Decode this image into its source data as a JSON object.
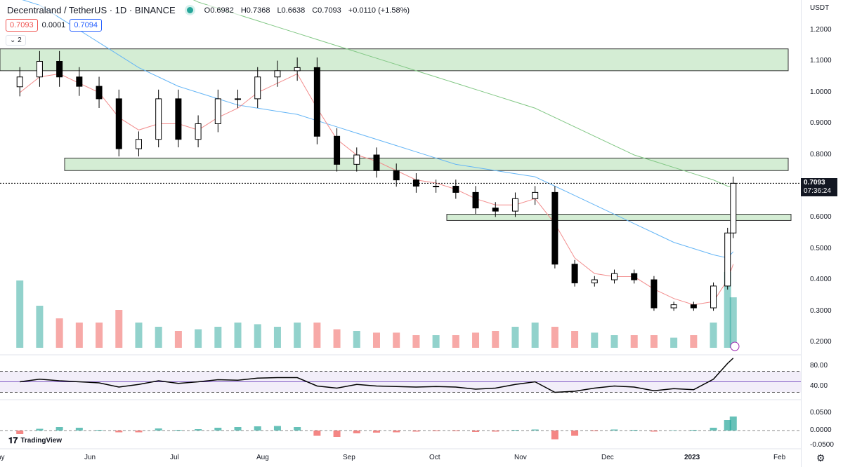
{
  "header": {
    "symbol": "Decentraland / TetherUS · 1D · BINANCE",
    "open": "O0.6982",
    "high": "H0.7368",
    "low": "L0.6638",
    "close": "C0.7093",
    "change": "+0.0110 (+1.58%)",
    "bid": "0.7093",
    "spread": "0.0001",
    "ask": "0.7094",
    "collapsed_count": "2"
  },
  "colors": {
    "up": "#26a69a",
    "down": "#ef5350",
    "ma20": "#f28c8c",
    "ma50": "#e07be0",
    "ma100": "#64b5f6",
    "ma200": "#81c784",
    "zone": "#d4edd4"
  },
  "price_axis": {
    "currency": "USDT",
    "ticks": [
      "1.2000",
      "1.1000",
      "1.0000",
      "0.9000",
      "0.8000",
      "0.6000",
      "0.5000",
      "0.4000",
      "0.3000",
      "0.2000"
    ],
    "last_price": "0.7093",
    "countdown": "07:36:24"
  },
  "rsi_axis": {
    "ticks": [
      "80.00",
      "40.00"
    ]
  },
  "macd_axis": {
    "ticks": [
      "0.0500",
      "0.0000",
      "-0.0500"
    ]
  },
  "time_axis": [
    "ay",
    "Jun",
    "Jul",
    "Aug",
    "Sep",
    "Oct",
    "Nov",
    "Dec",
    "2023",
    "Feb"
  ],
  "brand": "TradingView",
  "chart_data": {
    "type": "candlestick",
    "title": "Decentraland / TetherUS · 1D · BINANCE",
    "ylim": [
      0.17,
      1.27
    ],
    "grid": false,
    "dates": [
      "2022-05-08",
      "2022-05-15",
      "2022-05-22",
      "2022-05-29",
      "2022-06-05",
      "2022-06-12",
      "2022-06-19",
      "2022-06-26",
      "2022-07-03",
      "2022-07-10",
      "2022-07-17",
      "2022-07-24",
      "2022-07-31",
      "2022-08-07",
      "2022-08-14",
      "2022-08-21",
      "2022-08-28",
      "2022-09-04",
      "2022-09-11",
      "2022-09-18",
      "2022-09-25",
      "2022-10-02",
      "2022-10-09",
      "2022-10-16",
      "2022-10-23",
      "2022-10-30",
      "2022-11-06",
      "2022-11-13",
      "2022-11-20",
      "2022-11-27",
      "2022-12-04",
      "2022-12-11",
      "2022-12-18",
      "2022-12-25",
      "2023-01-01",
      "2023-01-08",
      "2023-01-13",
      "2023-01-15"
    ],
    "close": [
      1.05,
      1.1,
      1.05,
      1.02,
      0.98,
      0.82,
      0.85,
      0.98,
      0.85,
      0.9,
      0.98,
      0.98,
      1.05,
      1.07,
      1.08,
      0.86,
      0.77,
      0.8,
      0.75,
      0.72,
      0.7,
      0.7,
      0.68,
      0.63,
      0.62,
      0.66,
      0.68,
      0.45,
      0.39,
      0.4,
      0.42,
      0.4,
      0.31,
      0.32,
      0.31,
      0.38,
      0.55,
      0.7093
    ],
    "volume": [
      0.8,
      0.5,
      0.35,
      0.3,
      0.3,
      0.45,
      0.3,
      0.25,
      0.2,
      0.22,
      0.25,
      0.3,
      0.28,
      0.25,
      0.3,
      0.3,
      0.22,
      0.2,
      0.18,
      0.18,
      0.15,
      0.15,
      0.15,
      0.18,
      0.2,
      0.25,
      0.3,
      0.25,
      0.2,
      0.18,
      0.15,
      0.15,
      0.15,
      0.12,
      0.15,
      0.3,
      0.9,
      0.6
    ],
    "rsi": [
      50,
      55,
      52,
      50,
      48,
      40,
      45,
      52,
      47,
      50,
      54,
      53,
      57,
      58,
      58,
      42,
      38,
      45,
      42,
      41,
      40,
      41,
      40,
      36,
      38,
      45,
      50,
      30,
      32,
      38,
      42,
      40,
      33,
      37,
      35,
      55,
      85,
      95
    ],
    "macd_hist": [
      -0.01,
      0.005,
      0.01,
      0.008,
      0.002,
      -0.005,
      -0.005,
      0.006,
      0.002,
      0.004,
      0.008,
      0.01,
      0.012,
      0.013,
      0.01,
      -0.015,
      -0.018,
      -0.008,
      -0.006,
      -0.005,
      -0.003,
      -0.002,
      -0.002,
      -0.004,
      -0.003,
      0.002,
      0.003,
      -0.025,
      -0.015,
      -0.002,
      0.003,
      0.002,
      -0.003,
      0.001,
      0.002,
      0.008,
      0.03,
      0.04
    ],
    "zones": [
      [
        1.07,
        1.14
      ],
      [
        0.75,
        0.79
      ],
      [
        0.59,
        0.61
      ]
    ],
    "moving_averages": {
      "ma20": [
        1.0,
        1.05,
        1.06,
        1.03,
        1.0,
        0.92,
        0.88,
        0.9,
        0.9,
        0.88,
        0.92,
        0.95,
        1.0,
        1.03,
        1.06,
        0.95,
        0.85,
        0.8,
        0.78,
        0.75,
        0.72,
        0.71,
        0.69,
        0.66,
        0.64,
        0.64,
        0.66,
        0.58,
        0.47,
        0.42,
        0.41,
        0.41,
        0.37,
        0.34,
        0.32,
        0.33,
        0.4,
        0.45
      ],
      "ma100": [
        1.3,
        1.28,
        1.24,
        1.2,
        1.16,
        1.12,
        1.08,
        1.05,
        1.02,
        1.0,
        0.98,
        0.96,
        0.95,
        0.94,
        0.93,
        0.91,
        0.89,
        0.87,
        0.85,
        0.83,
        0.81,
        0.79,
        0.77,
        0.76,
        0.75,
        0.74,
        0.73,
        0.7,
        0.67,
        0.64,
        0.61,
        0.58,
        0.55,
        0.52,
        0.5,
        0.48,
        0.47,
        0.49
      ],
      "ma200": [
        1.55,
        1.53,
        1.5,
        1.47,
        1.44,
        1.41,
        1.38,
        1.35,
        1.32,
        1.29,
        1.27,
        1.25,
        1.23,
        1.21,
        1.19,
        1.17,
        1.15,
        1.13,
        1.11,
        1.09,
        1.07,
        1.05,
        1.03,
        1.01,
        0.99,
        0.97,
        0.95,
        0.92,
        0.89,
        0.86,
        0.83,
        0.8,
        0.78,
        0.76,
        0.74,
        0.72,
        0.7,
        0.7
      ]
    }
  }
}
